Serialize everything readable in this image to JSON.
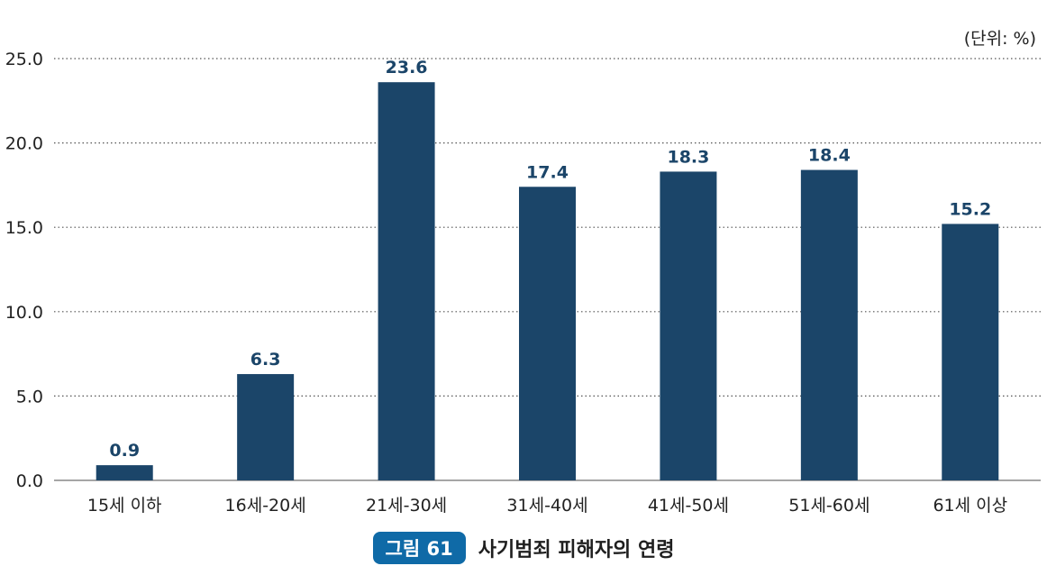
{
  "unit_label": "(단위: %)",
  "caption": {
    "figure_number": "그림 61",
    "title": "사기범죄 피해자의 연령"
  },
  "colors": {
    "bar": "#1b4569",
    "value_label": "#1b4569",
    "badge": "#0f6aa7"
  },
  "chart_data": {
    "type": "bar",
    "categories": [
      "15세 이하",
      "16세-20세",
      "21세-30세",
      "31세-40세",
      "41세-50세",
      "51세-60세",
      "61세 이상"
    ],
    "values": [
      0.9,
      6.3,
      23.6,
      17.4,
      18.3,
      18.4,
      15.2
    ],
    "ylim": [
      0,
      25
    ],
    "yticks": [
      "0.0",
      "5.0",
      "10.0",
      "15.0",
      "20.0",
      "25.0"
    ],
    "grid": true,
    "xlabel": "",
    "ylabel": ""
  }
}
